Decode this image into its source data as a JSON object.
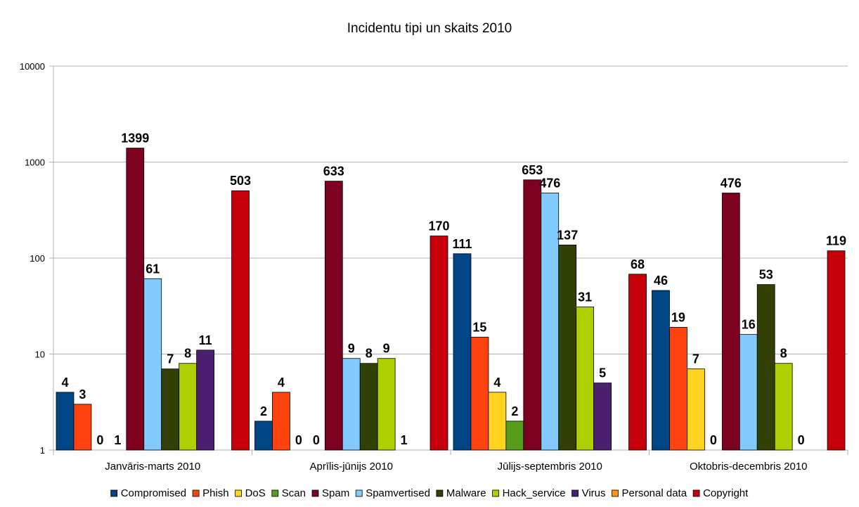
{
  "chart_data": {
    "type": "bar",
    "title": "Incidentu tipi un skaits 2010",
    "y_scale": "log",
    "ylim": [
      1,
      10000
    ],
    "y_ticks": [
      1,
      10,
      100,
      1000,
      10000
    ],
    "y_tick_labels": [
      "1",
      "10",
      "100",
      "1000",
      "10000"
    ],
    "grid": true,
    "legend_position": "bottom",
    "categories": [
      "Janvāris-marts 2010",
      "Aprīlis-jūnijs 2010",
      "Jūlijs-septembris 2010",
      "Oktobris-decembris 2010"
    ],
    "series": [
      {
        "name": "Compromised",
        "color": "#004586",
        "values": [
          4,
          2,
          111,
          46
        ]
      },
      {
        "name": "Phish",
        "color": "#ff420e",
        "values": [
          3,
          4,
          15,
          19
        ]
      },
      {
        "name": "DoS",
        "color": "#ffd320",
        "values": [
          0,
          0,
          4,
          7
        ]
      },
      {
        "name": "Scan",
        "color": "#579d1c",
        "values": [
          1,
          0,
          2,
          0
        ]
      },
      {
        "name": "Spam",
        "color": "#7e0021",
        "values": [
          1399,
          633,
          653,
          476
        ]
      },
      {
        "name": "Spamvertised",
        "color": "#83caff",
        "values": [
          61,
          9,
          476,
          16
        ]
      },
      {
        "name": "Malware",
        "color": "#314004",
        "values": [
          7,
          8,
          137,
          53
        ]
      },
      {
        "name": "Hack_service",
        "color": "#aecf00",
        "values": [
          8,
          9,
          31,
          8
        ]
      },
      {
        "name": "Virus",
        "color": "#4b1f6f",
        "values": [
          11,
          1,
          5,
          0
        ]
      },
      {
        "name": "Personal data",
        "color": "#ff950e",
        "values": [
          null,
          null,
          null,
          null
        ]
      },
      {
        "name": "Copyright",
        "color": "#c5000b",
        "values": [
          503,
          170,
          68,
          119
        ]
      }
    ],
    "data_labels": [
      [
        "4",
        "3",
        "0",
        "1",
        "1399",
        "61",
        "7",
        "8",
        "11",
        "",
        "503"
      ],
      [
        "2",
        "4",
        "0",
        "0",
        "633",
        "9",
        "8",
        "9",
        "1",
        "",
        "170"
      ],
      [
        "111",
        "15",
        "4",
        "2",
        "653",
        "476",
        "137",
        "31",
        "5",
        "",
        "68"
      ],
      [
        "46",
        "19",
        "7",
        "0",
        "476",
        "16",
        "53",
        "8",
        "0",
        "",
        "119"
      ]
    ]
  }
}
